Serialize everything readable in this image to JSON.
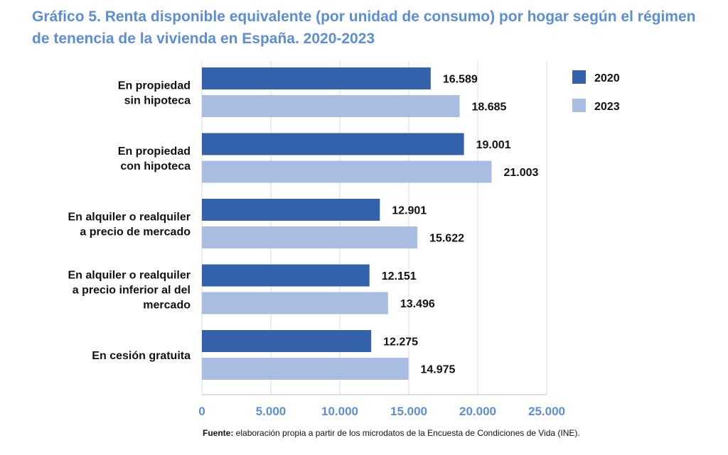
{
  "colors": {
    "series_2020": "#3462aa",
    "series_2023": "#a9bde3",
    "title": "#5b8ed6",
    "axis_ticks": "#5b8ed6",
    "grid": "#d9d9d9"
  },
  "source": {
    "label": "Fuente:",
    "text": " elaboración propia a partir de los microdatos de la Encuesta de Condiciones de Vida (INE)."
  },
  "chart_data": {
    "type": "bar",
    "orientation": "horizontal",
    "title": "Gráfico 5. Renta disponible equivalente (por unidad de consumo) por hogar según el régimen de tenencia de la vivienda en España. 2020-2023",
    "categories": [
      [
        "En propiedad",
        "sin hipoteca"
      ],
      [
        "En propiedad",
        "con hipoteca"
      ],
      [
        "En alquiler o realquiler",
        "a precio de mercado"
      ],
      [
        "En alquiler o realquiler",
        "a precio inferior al del",
        "mercado"
      ],
      [
        "En cesión gratuita"
      ]
    ],
    "series": [
      {
        "name": "2020",
        "values": [
          16589,
          19001,
          12901,
          12151,
          12275
        ],
        "labels": [
          "16.589",
          "19.001",
          "12.901",
          "12.151",
          "12.275"
        ]
      },
      {
        "name": "2023",
        "values": [
          18685,
          21003,
          15622,
          13496,
          14975
        ],
        "labels": [
          "18.685",
          "21.003",
          "15.622",
          "13.496",
          "14.975"
        ]
      }
    ],
    "xlim": [
      0,
      25000
    ],
    "xticks": [
      0,
      5000,
      10000,
      15000,
      20000,
      25000
    ],
    "xtick_labels": [
      "0",
      "5.000",
      "10.000",
      "15.000",
      "20.000",
      "25.000"
    ],
    "grid": true,
    "legend": "right"
  }
}
